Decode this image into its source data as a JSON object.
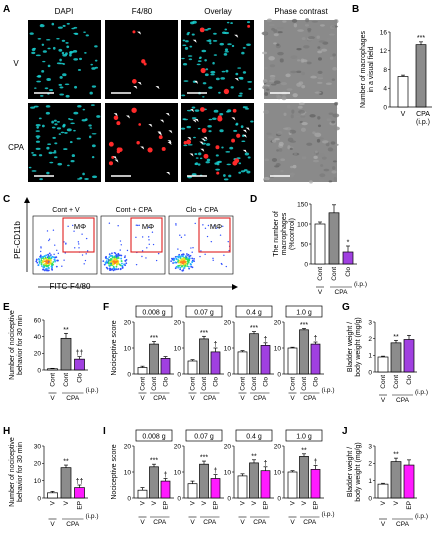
{
  "panels": {
    "A": {
      "letter": "A",
      "columns": [
        "DAPI",
        "F4/80",
        "Overlay",
        "Phase contrast"
      ],
      "rows": [
        "V",
        "CPA"
      ],
      "colors": {
        "nuclei": "#19d0d0",
        "macrophage": "#ff2a2a",
        "tissue_dark": "#0a1a22",
        "phase": "#8a8a8a"
      }
    },
    "B": {
      "letter": "B",
      "ylabel": "Number of macrophages in a visual field",
      "yticks": [
        "0",
        "4",
        "8",
        "12",
        "16"
      ],
      "sig": "***",
      "cat_labels": [
        "V",
        "CPA"
      ],
      "route": "(i.p.)"
    },
    "C": {
      "letter": "C",
      "ylabel": "PE-CD11b",
      "xlabel": "FITC-F4/80",
      "plots": [
        "Cont + V",
        "Cont + CPA",
        "Clo + CPA"
      ],
      "gate_label": "MΦ"
    },
    "D": {
      "letter": "D",
      "ylabel": "The number of macrophages (%control)",
      "yticks": [
        "0",
        "50",
        "100",
        "150"
      ],
      "sig": "*",
      "cat_labels": [
        "Cont",
        "Cont",
        "Clo"
      ],
      "treat_labels": [
        "V",
        "CPA"
      ],
      "route": "(i.p.)"
    },
    "E": {
      "letter": "E",
      "ylabel": "Number of nociceptive behavior for 30 min",
      "yticks": [
        "0",
        "20",
        "40",
        "60"
      ],
      "sig": [
        "**",
        "††"
      ],
      "cat_labels": [
        "Cont",
        "Cont",
        "Clo"
      ],
      "treat_labels": [
        "V",
        "CPA"
      ],
      "route": "(i.p.)"
    },
    "F": {
      "letter": "F",
      "ylabel": "Nociceptive score",
      "yticks": [
        "0",
        "10",
        "20"
      ],
      "forces": [
        "0.008 g",
        "0.07 g",
        "0.4 g",
        "1.0 g"
      ],
      "sig_main": "***",
      "sig_dag": "†",
      "cat_labels": [
        "Cont",
        "Cont",
        "Clo"
      ],
      "treat_labels": [
        "V",
        "CPA"
      ],
      "route": "(i.p.)"
    },
    "G": {
      "letter": "G",
      "ylabel": "Bladder weight / body weight (mg/g)",
      "yticks": [
        "0",
        "1",
        "2",
        "3"
      ],
      "sig": "**",
      "cat_labels": [
        "Cont",
        "Cont",
        "Clo"
      ],
      "treat_labels": [
        "V",
        "CPA"
      ],
      "route": "(i.p.)"
    },
    "H": {
      "letter": "H",
      "ylabel": "Number of nociceptive behavior for 30 min",
      "yticks": [
        "0",
        "10",
        "20",
        "30"
      ],
      "sig": [
        "**",
        "††"
      ],
      "cat_labels": [
        "V",
        "V",
        "EP"
      ],
      "treat_labels": [
        "V",
        "CPA"
      ],
      "route": "(i.p.)"
    },
    "I": {
      "letter": "I",
      "ylabel": "Nociceptive score",
      "yticks": [
        "0",
        "10",
        "20"
      ],
      "forces": [
        "0.008 g",
        "0.07 g",
        "0.4 g",
        "1.0 g"
      ],
      "sig_main": [
        "***",
        "***",
        "**",
        "**"
      ],
      "sig_dag": "†",
      "cat_labels": [
        "V",
        "V",
        "EP"
      ],
      "treat_labels": [
        "V",
        "CPA"
      ],
      "route": "(i.p.)"
    },
    "J": {
      "letter": "J",
      "ylabel": "Bladder weight / body weight (mg/g)",
      "yticks": [
        "0",
        "1",
        "2",
        "3"
      ],
      "sig": "**",
      "cat_labels": [
        "V",
        "V",
        "EP"
      ],
      "treat_labels": [
        "V",
        "CPA"
      ],
      "route": "(i.p.)"
    }
  },
  "colors": {
    "white_bar": "#ffffff",
    "grey_bar": "#8c8c8c",
    "purple_bar": "#a040e0",
    "magenta_bar": "#ff1aff",
    "gate": "#e02020"
  },
  "chart_data": [
    {
      "panel": "B",
      "type": "bar",
      "categories": [
        "V",
        "CPA"
      ],
      "values": [
        6.5,
        13.3
      ],
      "errors": [
        0.3,
        0.6
      ],
      "ylim": [
        0,
        16
      ],
      "ylabel": "Number of macrophages in a visual field"
    },
    {
      "panel": "D",
      "type": "bar",
      "categories": [
        "Cont+V",
        "Cont+CPA",
        "Clo+CPA"
      ],
      "values": [
        100,
        128,
        30
      ],
      "errors": [
        5,
        20,
        15
      ],
      "ylim": [
        0,
        150
      ],
      "ylabel": "The number of macrophages (%control)"
    },
    {
      "panel": "E",
      "type": "bar",
      "categories": [
        "Cont+V",
        "Cont+CPA",
        "Clo+CPA"
      ],
      "values": [
        1.5,
        38,
        13
      ],
      "errors": [
        0.5,
        6,
        3
      ],
      "ylim": [
        0,
        60
      ],
      "ylabel": "Number of nociceptive behavior for 30 min"
    },
    {
      "panel": "F",
      "type": "bar",
      "categories": [
        "Cont+V",
        "Cont+CPA",
        "Clo+CPA"
      ],
      "series": [
        {
          "name": "0.008 g",
          "values": [
            2.5,
            11.5,
            6
          ],
          "errors": [
            0.5,
            1,
            0.7
          ]
        },
        {
          "name": "0.07 g",
          "values": [
            5,
            13.5,
            8.5
          ],
          "errors": [
            0.5,
            1,
            1.5
          ]
        },
        {
          "name": "0.4 g",
          "values": [
            8.5,
            15.5,
            11
          ],
          "errors": [
            0.5,
            0.8,
            1
          ]
        },
        {
          "name": "1.0 g",
          "values": [
            10,
            17,
            11.5
          ],
          "errors": [
            0.3,
            0.5,
            0.8
          ]
        }
      ],
      "ylim": [
        0,
        20
      ],
      "ylabel": "Nociceptive score"
    },
    {
      "panel": "G",
      "type": "bar",
      "categories": [
        "Cont+V",
        "Cont+CPA",
        "Clo+CPA"
      ],
      "values": [
        0.9,
        1.75,
        1.95
      ],
      "errors": [
        0.05,
        0.15,
        0.25
      ],
      "ylim": [
        0,
        3
      ],
      "ylabel": "Bladder weight / body weight (mg/g)"
    },
    {
      "panel": "H",
      "type": "bar",
      "categories": [
        "V+V",
        "V+CPA",
        "EP+CPA"
      ],
      "values": [
        3,
        17.5,
        6
      ],
      "errors": [
        0.8,
        1.5,
        1.5
      ],
      "ylim": [
        0,
        30
      ],
      "ylabel": "Number of nociceptive behavior for 30 min"
    },
    {
      "panel": "I",
      "type": "bar",
      "categories": [
        "V+V",
        "V+CPA",
        "EP+CPA"
      ],
      "series": [
        {
          "name": "0.008 g",
          "values": [
            3,
            12,
            6.5
          ],
          "errors": [
            1,
            1,
            1
          ]
        },
        {
          "name": "0.07 g",
          "values": [
            5.5,
            13,
            7.5
          ],
          "errors": [
            1,
            1.2,
            1.5
          ]
        },
        {
          "name": "0.4 g",
          "values": [
            8.5,
            13.5,
            10.5
          ],
          "errors": [
            0.8,
            1.2,
            1.5
          ]
        },
        {
          "name": "1.0 g",
          "values": [
            10,
            16,
            11
          ],
          "errors": [
            0.5,
            1,
            1.5
          ]
        }
      ],
      "ylim": [
        0,
        20
      ],
      "ylabel": "Nociceptive score"
    },
    {
      "panel": "J",
      "type": "bar",
      "categories": [
        "V+V",
        "V+CPA",
        "EP+CPA"
      ],
      "values": [
        0.8,
        2.1,
        1.9
      ],
      "errors": [
        0.05,
        0.2,
        0.3
      ],
      "ylim": [
        0,
        3
      ],
      "ylabel": "Bladder weight / body weight (mg/g)"
    }
  ]
}
